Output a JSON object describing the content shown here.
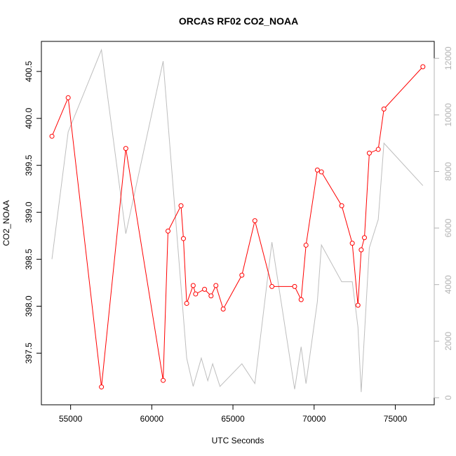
{
  "chart_data": {
    "type": "line",
    "title": "ORCAS RF02 CO2_NOAA",
    "xlabel": "UTC Seconds",
    "ylabel": "CO2_NOAA",
    "xlim": [
      53200,
      77400
    ],
    "ylim": [
      396.95,
      400.82
    ],
    "y2lim": [
      -250,
      12600
    ],
    "x_ticks": [
      55000,
      60000,
      65000,
      70000,
      75000
    ],
    "y_ticks": [
      397.5,
      398.0,
      398.5,
      399.0,
      399.5,
      400.0,
      400.5
    ],
    "y_tick_labels": [
      "397.5",
      "398.0",
      "398.5",
      "399.0",
      "399.5",
      "400.0",
      "400.5"
    ],
    "y2_ticks": [
      0,
      2000,
      4000,
      6000,
      8000,
      10000,
      12000
    ],
    "y2_tick_labels": [
      "0",
      "2000",
      "4000",
      "6000",
      "8000",
      "10000",
      "12000"
    ],
    "colors": {
      "primary": "#ff0000",
      "secondary": "#bebebe"
    },
    "series": [
      {
        "axis": "left",
        "style": "line-with-open-circles",
        "x": [
          53850,
          54850,
          56900,
          58400,
          60700,
          61000,
          61800,
          61950,
          62150,
          62550,
          62700,
          63250,
          63650,
          63950,
          64400,
          65550,
          66350,
          67400,
          68800,
          69200,
          69500,
          70200,
          70450,
          71700,
          72350,
          72700,
          72900,
          73100,
          73400,
          73950,
          74300,
          76700
        ],
        "y": [
          399.81,
          400.22,
          397.14,
          399.68,
          397.21,
          398.8,
          399.07,
          398.72,
          398.03,
          398.22,
          398.13,
          398.18,
          398.11,
          398.22,
          397.97,
          398.33,
          398.91,
          398.21,
          398.21,
          398.07,
          398.65,
          399.45,
          399.43,
          399.07,
          398.67,
          398.01,
          398.6,
          398.73,
          399.63,
          399.67,
          400.1,
          400.55
        ]
      },
      {
        "axis": "right",
        "style": "line",
        "x": [
          53850,
          54850,
          56900,
          58400,
          60700,
          62150,
          62550,
          63050,
          63450,
          63750,
          64200,
          65550,
          66350,
          67400,
          68800,
          69200,
          69500,
          70200,
          70450,
          71700,
          72350,
          72700,
          72900,
          73400,
          73950,
          74300,
          76700
        ],
        "y": [
          4900,
          9400,
          12300,
          5800,
          11900,
          1400,
          400,
          1400,
          600,
          1200,
          400,
          1200,
          500,
          5500,
          300,
          1800,
          500,
          3400,
          5400,
          4100,
          4100,
          2500,
          200,
          5300,
          6300,
          9000,
          7500
        ]
      }
    ]
  }
}
